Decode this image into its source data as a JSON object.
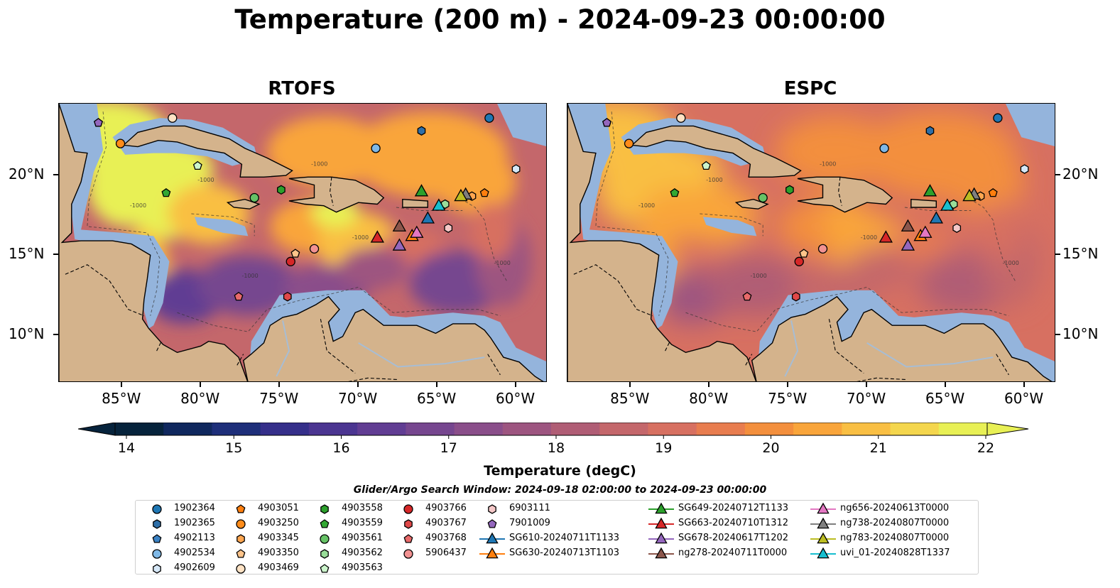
{
  "title": "Temperature (200 m) - 2024-09-23 00:00:00",
  "panels": [
    {
      "id": "rtofs",
      "title": "RTOFS"
    },
    {
      "id": "espc",
      "title": "ESPC"
    }
  ],
  "map_extent": {
    "lon": [
      -89,
      -58
    ],
    "lat": [
      7,
      24.5
    ]
  },
  "lon_ticks": [
    "85°W",
    "80°W",
    "75°W",
    "70°W",
    "65°W",
    "60°W"
  ],
  "lon_tick_values": [
    -85,
    -80,
    -75,
    -70,
    -65,
    -60
  ],
  "lat_ticks": [
    "20°N",
    "15°N",
    "10°N"
  ],
  "lat_tick_values": [
    20,
    15,
    10
  ],
  "colorbar": {
    "label": "Temperature (degC)",
    "ticks": [
      "14",
      "15",
      "16",
      "17",
      "18",
      "19",
      "20",
      "21",
      "22"
    ],
    "min": 14,
    "max": 22,
    "colors": [
      "#06233c",
      "#10285e",
      "#1e2f7a",
      "#352f8a",
      "#4b3591",
      "#613d93",
      "#76468f",
      "#8a4e8a",
      "#9d5580",
      "#b05d75",
      "#c4676b",
      "#d77061",
      "#e87d4f",
      "#f38f3d",
      "#f9a53b",
      "#f9bf43",
      "#f4d64d",
      "#e8f055"
    ]
  },
  "colors": {
    "land": "#d4b38c",
    "shallow": "#94b4dc",
    "deep": "#0a2030",
    "rivers": "#a7bdd4"
  },
  "contour_label": "-1000",
  "search_window": "Glider/Argo Search Window: 2024-09-18 02:00:00 to 2024-09-23 00:00:00",
  "legend": {
    "columns": [
      [
        {
          "label": "1902364",
          "marker": "circle",
          "color": "#1f77b4"
        },
        {
          "label": "1902365",
          "marker": "hexagon",
          "color": "#2e6fa8"
        },
        {
          "label": "4902113",
          "marker": "pentagon",
          "color": "#3b82c4"
        },
        {
          "label": "4902534",
          "marker": "circle",
          "color": "#7fb8e6"
        },
        {
          "label": "4902609",
          "marker": "hexagon",
          "color": "#d6e8f8"
        }
      ],
      [
        {
          "label": "4903051",
          "marker": "pentagon",
          "color": "#ff7f0e"
        },
        {
          "label": "4903250",
          "marker": "circle",
          "color": "#ff8c1a"
        },
        {
          "label": "4903345",
          "marker": "hexagon",
          "color": "#ffa650"
        },
        {
          "label": "4903350",
          "marker": "pentagon",
          "color": "#ffc48a"
        },
        {
          "label": "4903469",
          "marker": "circle",
          "color": "#ffe2c4"
        }
      ],
      [
        {
          "label": "4903558",
          "marker": "hexagon",
          "color": "#2ca02c"
        },
        {
          "label": "4903559",
          "marker": "pentagon",
          "color": "#33a833"
        },
        {
          "label": "4903561",
          "marker": "circle",
          "color": "#66c266"
        },
        {
          "label": "4903562",
          "marker": "hexagon",
          "color": "#99dd99"
        },
        {
          "label": "4903563",
          "marker": "pentagon",
          "color": "#ccf5cc"
        }
      ],
      [
        {
          "label": "4903766",
          "marker": "circle",
          "color": "#d62728"
        },
        {
          "label": "4903767",
          "marker": "hexagon",
          "color": "#e04848"
        },
        {
          "label": "4903768",
          "marker": "pentagon",
          "color": "#e86a6a"
        },
        {
          "label": "5906437",
          "marker": "circle",
          "color": "#f29292"
        }
      ],
      [
        {
          "label": "6903111",
          "marker": "hexagon",
          "color": "#f5c8c8"
        },
        {
          "label": "7901009",
          "marker": "pentagon",
          "color": "#9467bd"
        },
        {
          "label": "SG610-20240711T1133",
          "marker": "triangle-line",
          "color": "#1f77b4"
        },
        {
          "label": "SG630-20240713T1103",
          "marker": "triangle-line",
          "color": "#ff7f0e"
        }
      ],
      [
        {
          "label": "SG649-20240712T1133",
          "marker": "triangle-line",
          "color": "#2ca02c"
        },
        {
          "label": "SG663-20240710T1312",
          "marker": "triangle-line",
          "color": "#d62728"
        },
        {
          "label": "SG678-20240617T1202",
          "marker": "triangle-line",
          "color": "#9467bd"
        },
        {
          "label": "ng278-20240711T0000",
          "marker": "triangle-line",
          "color": "#8c564b"
        }
      ],
      [
        {
          "label": "ng656-20240613T0000",
          "marker": "triangle-line",
          "color": "#e377c2"
        },
        {
          "label": "ng738-20240807T0000",
          "marker": "triangle-line",
          "color": "#7f7f7f"
        },
        {
          "label": "ng783-20240807T0000",
          "marker": "triangle-line",
          "color": "#bcbd22"
        },
        {
          "label": "uvi_01-20240828T1337",
          "marker": "triangle-line",
          "color": "#17becf"
        }
      ]
    ]
  },
  "observations": [
    {
      "label": "1902364",
      "marker": "circle",
      "color": "#1f77b4",
      "lon": -61.7,
      "lat": 23.6
    },
    {
      "label": "1902365",
      "marker": "hexagon",
      "color": "#2e6fa8",
      "lon": -66.0,
      "lat": 22.8
    },
    {
      "label": "4902113",
      "marker": "pentagon",
      "color": "#3b82c4",
      "lon": -86.5,
      "lat": 23.3
    },
    {
      "label": "4902534",
      "marker": "circle",
      "color": "#7fb8e6",
      "lon": -68.9,
      "lat": 21.7
    },
    {
      "label": "4902609",
      "marker": "hexagon",
      "color": "#d6e8f8",
      "lon": -60.0,
      "lat": 20.4
    },
    {
      "label": "4903051",
      "marker": "pentagon",
      "color": "#ff7f0e",
      "lon": -62.0,
      "lat": 18.9
    },
    {
      "label": "4903250",
      "marker": "circle",
      "color": "#ff8c1a",
      "lon": -85.1,
      "lat": 22.0
    },
    {
      "label": "4903345",
      "marker": "hexagon",
      "color": "#ffa650",
      "lon": -62.8,
      "lat": 18.7
    },
    {
      "label": "4903350",
      "marker": "pentagon",
      "color": "#ffc48a",
      "lon": -74.0,
      "lat": 15.1
    },
    {
      "label": "4903469",
      "marker": "circle",
      "color": "#ffe2c4",
      "lon": -81.8,
      "lat": 23.6
    },
    {
      "label": "4903558",
      "marker": "hexagon",
      "color": "#2ca02c",
      "lon": -74.9,
      "lat": 19.1
    },
    {
      "label": "4903559",
      "marker": "pentagon",
      "color": "#33a833",
      "lon": -82.2,
      "lat": 18.9
    },
    {
      "label": "4903561",
      "marker": "circle",
      "color": "#66c266",
      "lon": -76.6,
      "lat": 18.6
    },
    {
      "label": "4903562",
      "marker": "hexagon",
      "color": "#99dd99",
      "lon": -64.5,
      "lat": 18.2
    },
    {
      "label": "4903563",
      "marker": "pentagon",
      "color": "#ccf5cc",
      "lon": -80.2,
      "lat": 20.6
    },
    {
      "label": "4903766",
      "marker": "circle",
      "color": "#d62728",
      "lon": -74.3,
      "lat": 14.6
    },
    {
      "label": "4903767",
      "marker": "hexagon",
      "color": "#e04848",
      "lon": -74.5,
      "lat": 12.4
    },
    {
      "label": "4903768",
      "marker": "pentagon",
      "color": "#e86a6a",
      "lon": -77.6,
      "lat": 12.4
    },
    {
      "label": "5906437",
      "marker": "circle",
      "color": "#f29292",
      "lon": -72.8,
      "lat": 15.4
    },
    {
      "label": "6903111",
      "marker": "hexagon",
      "color": "#f5c8c8",
      "lon": -64.3,
      "lat": 16.7
    },
    {
      "label": "7901009",
      "marker": "pentagon",
      "color": "#9467bd",
      "lon": -86.5,
      "lat": 23.3
    },
    {
      "label": "SG610-20240711T1133",
      "marker": "triangle",
      "color": "#1f77b4",
      "lon": -65.6,
      "lat": 17.3
    },
    {
      "label": "SG630-20240713T1103",
      "marker": "triangle",
      "color": "#ff7f0e",
      "lon": -66.6,
      "lat": 16.2
    },
    {
      "label": "SG649-20240712T1133",
      "marker": "triangle",
      "color": "#2ca02c",
      "lon": -66.0,
      "lat": 19.0
    },
    {
      "label": "SG663-20240710T1312",
      "marker": "triangle",
      "color": "#d62728",
      "lon": -68.8,
      "lat": 16.1
    },
    {
      "label": "SG678-20240617T1202",
      "marker": "triangle",
      "color": "#9467bd",
      "lon": -67.4,
      "lat": 15.6
    },
    {
      "label": "ng278-20240711T0000",
      "marker": "triangle",
      "color": "#8c564b",
      "lon": -67.4,
      "lat": 16.8
    },
    {
      "label": "ng656-20240613T0000",
      "marker": "triangle",
      "color": "#e377c2",
      "lon": -66.3,
      "lat": 16.4
    },
    {
      "label": "ng738-20240807T0000",
      "marker": "triangle",
      "color": "#7f7f7f",
      "lon": -63.2,
      "lat": 18.8
    },
    {
      "label": "ng783-20240807T0000",
      "marker": "triangle",
      "color": "#bcbd22",
      "lon": -63.5,
      "lat": 18.7
    },
    {
      "label": "uvi_01-20240828T1337",
      "marker": "triangle",
      "color": "#17becf",
      "lon": -64.9,
      "lat": 18.1
    }
  ]
}
